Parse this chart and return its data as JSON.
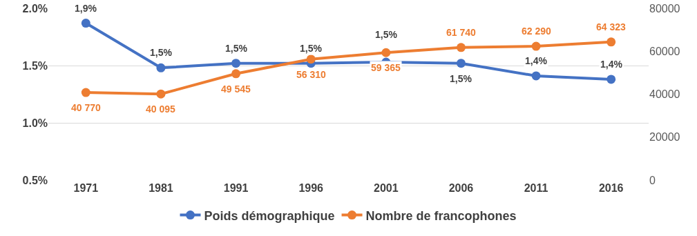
{
  "chart_data": {
    "type": "line",
    "categories": [
      "1971",
      "1981",
      "1991",
      "1996",
      "2001",
      "2006",
      "2011",
      "2016"
    ],
    "series": [
      {
        "name": "Poids démographique",
        "color": "#4472c4",
        "values": [
          1.87,
          1.48,
          1.52,
          1.52,
          1.53,
          1.52,
          1.41,
          1.38
        ],
        "value_labels": [
          "1,9%",
          "1,5%",
          "1,5%",
          "1,5%",
          "1,5%",
          "1,5%",
          "1,4%",
          "1,4%"
        ]
      },
      {
        "name": "Nombre de francophones",
        "color": "#ed7d31",
        "axis": "y2",
        "values": [
          40770,
          40095,
          49545,
          56310,
          59365,
          61740,
          62290,
          64323
        ],
        "value_labels": [
          "40 770",
          "40 095",
          "49 545",
          "56 310",
          "59 365",
          "61 740",
          "62 290",
          "64 323"
        ]
      }
    ],
    "ylim": [
      0.5,
      2.0
    ],
    "yticks": [
      {
        "value": 0.5,
        "label": "0.5%"
      },
      {
        "value": 1.0,
        "label": "1.0%"
      },
      {
        "value": 1.5,
        "label": "1.5%"
      },
      {
        "value": 2.0,
        "label": "2.0%"
      }
    ],
    "y2lim": [
      0,
      80000
    ],
    "y2ticks": [
      0,
      20000,
      40000,
      60000,
      80000
    ],
    "grid": "y",
    "legend": "bottom",
    "marker": "circle",
    "line_style": "solid"
  }
}
